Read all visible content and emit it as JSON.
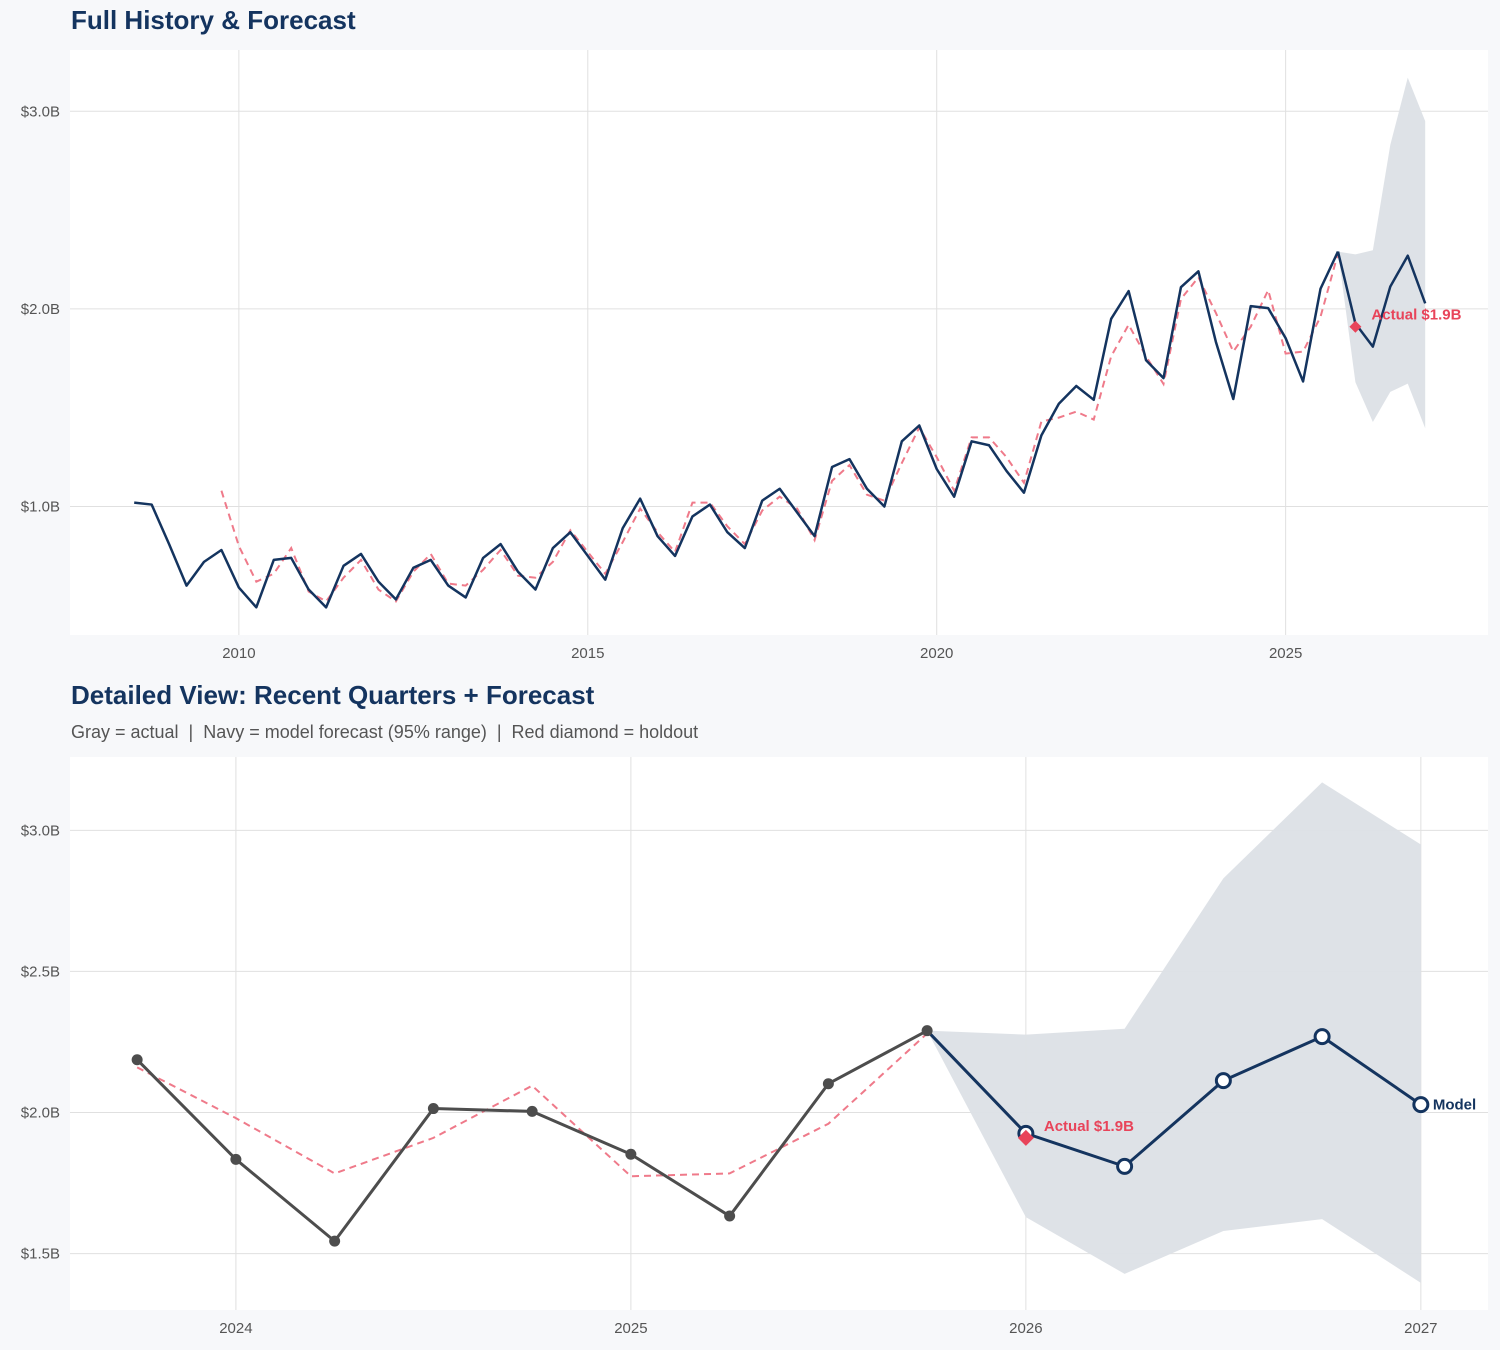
{
  "colors": {
    "navy": "#14345f",
    "gray": "#4d4d4d",
    "red": "#e8445a",
    "fitted": "#ef7a8a",
    "band": "#dce0e6",
    "grid": "#e0e0e0",
    "panel": "#ffffff"
  },
  "chart_data": [
    {
      "type": "line",
      "title": "Full History & Forecast",
      "xlim": [
        2007.58,
        2027.9
      ],
      "ylim": [
        0.35,
        3.31
      ],
      "x_ticks": [
        2010,
        2015,
        2020,
        2025
      ],
      "x_tick_labels": [
        "2010",
        "2015",
        "2020",
        "2025"
      ],
      "y_ticks": [
        1.0,
        2.0,
        3.0
      ],
      "y_tick_labels": [
        "$1.0B",
        "$2.0B",
        "$3.0B"
      ],
      "grid": true,
      "actual": {
        "x_start": 2008.5,
        "step": 0.25,
        "values": [
          1.02,
          1.01,
          0.81,
          0.6,
          0.72,
          0.78,
          0.59,
          0.49,
          0.73,
          0.74,
          0.58,
          0.49,
          0.7,
          0.76,
          0.62,
          0.53,
          0.69,
          0.73,
          0.6,
          0.54,
          0.74,
          0.81,
          0.67,
          0.58,
          0.79,
          0.87,
          0.75,
          0.63,
          0.89,
          1.04,
          0.85,
          0.75,
          0.95,
          1.01,
          0.87,
          0.79,
          1.03,
          1.09,
          0.97,
          0.85,
          1.2,
          1.24,
          1.09,
          1.0,
          1.33,
          1.41,
          1.19,
          1.05,
          1.33,
          1.31,
          1.18,
          1.07,
          1.36,
          1.52,
          1.61,
          1.54,
          1.95,
          2.09,
          1.74,
          1.65,
          2.11,
          2.19,
          1.834,
          1.544,
          2.014,
          2.004,
          1.852,
          1.633,
          2.102,
          2.29
        ]
      },
      "fitted": {
        "x_start": 2009.75,
        "step": 0.25,
        "values": [
          1.08,
          0.8,
          0.62,
          0.66,
          0.79,
          0.57,
          0.52,
          0.64,
          0.73,
          0.58,
          0.52,
          0.67,
          0.76,
          0.61,
          0.6,
          0.68,
          0.78,
          0.65,
          0.64,
          0.72,
          0.88,
          0.77,
          0.66,
          0.82,
          0.99,
          0.87,
          0.77,
          1.02,
          1.02,
          0.9,
          0.81,
          0.98,
          1.05,
          0.99,
          0.83,
          1.13,
          1.21,
          1.06,
          1.03,
          1.22,
          1.4,
          1.25,
          1.08,
          1.35,
          1.35,
          1.25,
          1.12,
          1.43,
          1.45,
          1.48,
          1.44,
          1.76,
          1.92,
          1.76,
          1.62,
          2.05,
          2.16,
          1.98,
          1.784,
          1.91,
          2.095,
          1.774,
          1.784,
          1.96,
          2.28
        ]
      },
      "forecast": {
        "x": [
          2025.75,
          2026.0,
          2026.25,
          2026.5,
          2026.75,
          2027.0
        ],
        "values": [
          2.29,
          1.926,
          1.809,
          2.113,
          2.269,
          2.028
        ],
        "upper": [
          2.29,
          2.276,
          2.297,
          2.83,
          3.17,
          2.95
        ],
        "lower": [
          2.29,
          1.629,
          1.428,
          1.58,
          1.622,
          1.396
        ]
      },
      "holdout": {
        "x": 2026.0,
        "value": 1.91,
        "label": "Actual $1.9B"
      }
    },
    {
      "type": "line",
      "title": "Detailed View: Recent Quarters + Forecast",
      "subtitle": "Gray = actual  |  Navy = model forecast (95% range)  |  Red diamond = holdout",
      "xlim": [
        2023.58,
        2027.17
      ],
      "ylim": [
        1.3,
        3.26
      ],
      "x_ticks": [
        2024,
        2025,
        2026,
        2027
      ],
      "x_tick_labels": [
        "2024",
        "2025",
        "2026",
        "2027"
      ],
      "y_ticks": [
        1.5,
        2.0,
        2.5,
        3.0
      ],
      "y_tick_labels": [
        "$1.5B",
        "$2.0B",
        "$2.5B",
        "$3.0B"
      ],
      "grid": true,
      "actual": {
        "x": [
          2023.75,
          2024.0,
          2024.25,
          2024.5,
          2024.75,
          2025.0,
          2025.25,
          2025.5,
          2025.75
        ],
        "values": [
          2.187,
          1.834,
          1.544,
          2.014,
          2.004,
          1.852,
          1.633,
          2.102,
          2.29
        ]
      },
      "fitted": {
        "x": [
          2023.75,
          2024.0,
          2024.25,
          2024.5,
          2024.75,
          2025.0,
          2025.25,
          2025.5,
          2025.75
        ],
        "values": [
          2.16,
          1.98,
          1.784,
          1.91,
          2.095,
          1.774,
          1.784,
          1.96,
          2.28
        ]
      },
      "forecast": {
        "x": [
          2025.75,
          2026.0,
          2026.25,
          2026.5,
          2026.75,
          2027.0
        ],
        "values": [
          2.29,
          1.926,
          1.809,
          2.113,
          2.269,
          2.028
        ],
        "upper": [
          2.29,
          2.276,
          2.297,
          2.83,
          3.17,
          2.95
        ],
        "lower": [
          2.29,
          1.629,
          1.428,
          1.58,
          1.622,
          1.396
        ],
        "end_label": "Model"
      },
      "holdout": {
        "x": 2026.0,
        "value": 1.91,
        "label": "Actual $1.9B"
      }
    }
  ]
}
